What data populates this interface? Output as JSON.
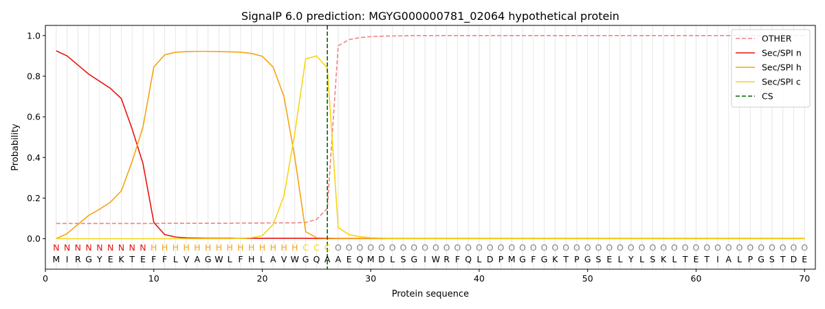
{
  "chart_data": {
    "type": "line",
    "title": "SignalP 6.0 prediction: MGYG000000781_02064 hypothetical protein",
    "xlabel": "Protein sequence",
    "ylabel": "Probability",
    "xlim": [
      0,
      71
    ],
    "ylim": [
      -0.15,
      1.05
    ],
    "x_ticks": [
      0,
      10,
      20,
      30,
      40,
      50,
      60,
      70
    ],
    "y_ticks": [
      0.0,
      0.2,
      0.4,
      0.6,
      0.8,
      1.0
    ],
    "x_tick_labels": [
      "0",
      "10",
      "20",
      "30",
      "40",
      "50",
      "60",
      "70"
    ],
    "y_tick_labels": [
      "0.0",
      "0.2",
      "0.4",
      "0.6",
      "0.8",
      "1.0"
    ],
    "legend_position": "top-right",
    "sequence": [
      "M",
      "I",
      "R",
      "G",
      "Y",
      "E",
      "K",
      "T",
      "E",
      "F",
      "F",
      "L",
      "V",
      "A",
      "G",
      "W",
      "L",
      "F",
      "H",
      "L",
      "A",
      "V",
      "W",
      "G",
      "Q",
      "A",
      "A",
      "E",
      "Q",
      "M",
      "D",
      "L",
      "S",
      "G",
      "I",
      "W",
      "R",
      "F",
      "Q",
      "L",
      "D",
      "P",
      "M",
      "G",
      "F",
      "G",
      "K",
      "T",
      "P",
      "G",
      "S",
      "E",
      "L",
      "Y",
      "L",
      "S",
      "K",
      "L",
      "T",
      "E",
      "T",
      "I",
      "A",
      "L",
      "P",
      "G",
      "S",
      "T",
      "D",
      "E"
    ],
    "labels": [
      "N",
      "N",
      "N",
      "N",
      "N",
      "N",
      "N",
      "N",
      "N",
      "H",
      "H",
      "H",
      "H",
      "H",
      "H",
      "H",
      "H",
      "H",
      "H",
      "H",
      "H",
      "H",
      "H",
      "C",
      "C",
      "C",
      "O",
      "O",
      "O",
      "O",
      "O",
      "O",
      "O",
      "O",
      "O",
      "O",
      "O",
      "O",
      "O",
      "O",
      "O",
      "O",
      "O",
      "O",
      "O",
      "O",
      "O",
      "O",
      "O",
      "O",
      "O",
      "O",
      "O",
      "O",
      "O",
      "O",
      "O",
      "O",
      "O",
      "O",
      "O",
      "O",
      "O",
      "O",
      "O",
      "O",
      "O",
      "O",
      "O",
      "O"
    ],
    "label_colors": {
      "N": "#e8120c",
      "H": "#f5a30f",
      "C": "#f5d60f",
      "O": "#808080"
    },
    "cleavage_site": 26,
    "series": [
      {
        "name": "OTHER",
        "color": "#f08080",
        "dash": "dashed",
        "values": [
          0.075,
          0.075,
          0.075,
          0.075,
          0.075,
          0.075,
          0.075,
          0.075,
          0.075,
          0.075,
          0.076,
          0.076,
          0.076,
          0.076,
          0.076,
          0.076,
          0.076,
          0.077,
          0.077,
          0.077,
          0.078,
          0.078,
          0.078,
          0.08,
          0.095,
          0.15,
          0.95,
          0.98,
          0.99,
          0.995,
          0.997,
          0.998,
          0.999,
          1.0,
          1.0,
          1.0,
          1.0,
          1.0,
          1.0,
          1.0,
          1.0,
          1.0,
          1.0,
          1.0,
          1.0,
          1.0,
          1.0,
          1.0,
          1.0,
          1.0,
          1.0,
          1.0,
          1.0,
          1.0,
          1.0,
          1.0,
          1.0,
          1.0,
          1.0,
          1.0,
          1.0,
          1.0,
          1.0,
          1.0,
          1.0,
          1.0,
          1.0,
          1.0,
          1.0,
          1.0
        ]
      },
      {
        "name": "Sec/SPI n",
        "color": "#e8120c",
        "dash": "solid",
        "values": [
          0.925,
          0.9,
          0.855,
          0.81,
          0.775,
          0.74,
          0.69,
          0.54,
          0.37,
          0.08,
          0.02,
          0.008,
          0.004,
          0.003,
          0.002,
          0.002,
          0.002,
          0.002,
          0.002,
          0.002,
          0.002,
          0.002,
          0.002,
          0.002,
          0.001,
          0.001,
          0.001,
          0.001,
          0.001,
          0.001,
          0.001,
          0.001,
          0.001,
          0.001,
          0.001,
          0.001,
          0.001,
          0.001,
          0.001,
          0.001,
          0.001,
          0.001,
          0.001,
          0.001,
          0.001,
          0.001,
          0.001,
          0.001,
          0.001,
          0.001,
          0.001,
          0.001,
          0.001,
          0.001,
          0.001,
          0.001,
          0.001,
          0.001,
          0.001,
          0.001,
          0.001,
          0.001,
          0.001,
          0.001,
          0.001,
          0.001,
          0.001,
          0.001,
          0.001,
          0.001
        ]
      },
      {
        "name": "Sec/SPI h",
        "color": "#f5a30f",
        "dash": "solid",
        "values": [
          0.0,
          0.025,
          0.07,
          0.115,
          0.145,
          0.18,
          0.235,
          0.38,
          0.55,
          0.845,
          0.905,
          0.918,
          0.921,
          0.922,
          0.922,
          0.921,
          0.92,
          0.918,
          0.912,
          0.898,
          0.845,
          0.7,
          0.4,
          0.035,
          0.005,
          0.003,
          0.002,
          0.002,
          0.002,
          0.002,
          0.002,
          0.002,
          0.002,
          0.002,
          0.002,
          0.002,
          0.002,
          0.002,
          0.002,
          0.002,
          0.002,
          0.002,
          0.002,
          0.002,
          0.002,
          0.002,
          0.002,
          0.002,
          0.002,
          0.002,
          0.002,
          0.002,
          0.002,
          0.002,
          0.002,
          0.002,
          0.002,
          0.002,
          0.002,
          0.002,
          0.002,
          0.002,
          0.002,
          0.002,
          0.002,
          0.002,
          0.002,
          0.002,
          0.002,
          0.002
        ]
      },
      {
        "name": "Sec/SPI c",
        "color": "#f5d60f",
        "dash": "solid",
        "values": [
          0.0,
          0.0,
          0.0,
          0.0,
          0.0,
          0.0,
          0.0,
          0.0,
          0.0,
          0.0,
          0.0,
          0.0,
          0.0,
          0.0,
          0.0,
          0.0,
          0.0,
          0.002,
          0.005,
          0.015,
          0.07,
          0.21,
          0.52,
          0.885,
          0.9,
          0.84,
          0.055,
          0.02,
          0.01,
          0.005,
          0.003,
          0.002,
          0.002,
          0.002,
          0.002,
          0.002,
          0.002,
          0.002,
          0.002,
          0.002,
          0.002,
          0.002,
          0.002,
          0.002,
          0.002,
          0.002,
          0.002,
          0.002,
          0.002,
          0.002,
          0.002,
          0.002,
          0.002,
          0.002,
          0.002,
          0.002,
          0.002,
          0.002,
          0.002,
          0.002,
          0.002,
          0.002,
          0.002,
          0.002,
          0.002,
          0.002,
          0.002,
          0.002,
          0.002,
          0.002
        ]
      },
      {
        "name": "CS",
        "color": "#006400",
        "dash": "dashed",
        "legend_only": true
      }
    ]
  }
}
